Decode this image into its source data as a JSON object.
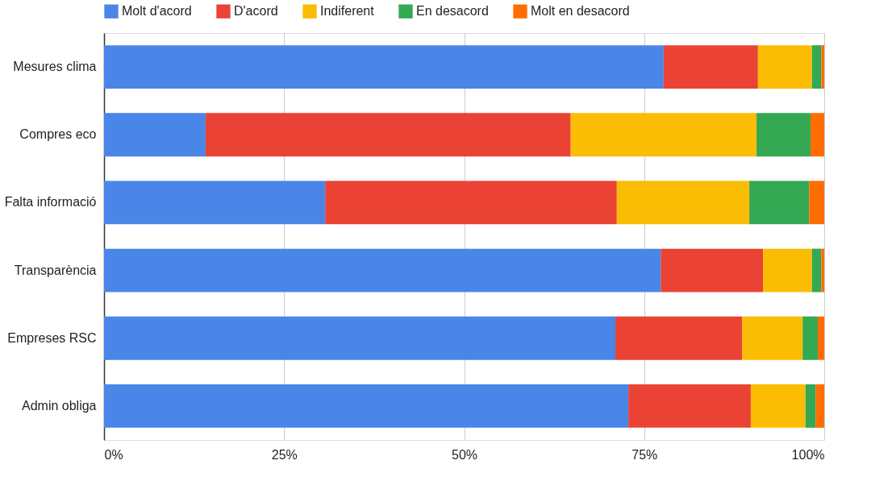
{
  "chart_data": {
    "type": "bar",
    "orientation": "horizontal",
    "stacked": true,
    "categories": [
      "Mesures clima",
      "Compres eco",
      "Falta informació",
      "Transparència",
      "Empreses RSC",
      "Admin obliga"
    ],
    "series": [
      {
        "name": "Molt d'acord",
        "color": "#4a86e8",
        "values": [
          77.7,
          14.1,
          30.7,
          77.3,
          71.0,
          72.8
        ]
      },
      {
        "name": "D'acord",
        "color": "#ea4335",
        "values": [
          13.1,
          50.7,
          40.5,
          14.2,
          17.6,
          17.0
        ]
      },
      {
        "name": "Indiferent",
        "color": "#fbbc04",
        "values": [
          7.5,
          25.8,
          18.4,
          6.8,
          8.4,
          7.6
        ]
      },
      {
        "name": "En desacord",
        "color": "#34a853",
        "values": [
          1.3,
          7.5,
          8.3,
          1.3,
          2.1,
          1.4
        ]
      },
      {
        "name": "Molt en desacord",
        "color": "#ff6d01",
        "values": [
          0.4,
          1.9,
          2.1,
          0.4,
          0.9,
          1.2
        ]
      }
    ],
    "xlim": [
      0,
      100
    ],
    "xticks": [
      {
        "value": 0,
        "label": "0%"
      },
      {
        "value": 25,
        "label": "25%"
      },
      {
        "value": 50,
        "label": "50%"
      },
      {
        "value": 75,
        "label": "75%"
      },
      {
        "value": 100,
        "label": "100%"
      }
    ],
    "grid": "x",
    "legend": "top"
  }
}
